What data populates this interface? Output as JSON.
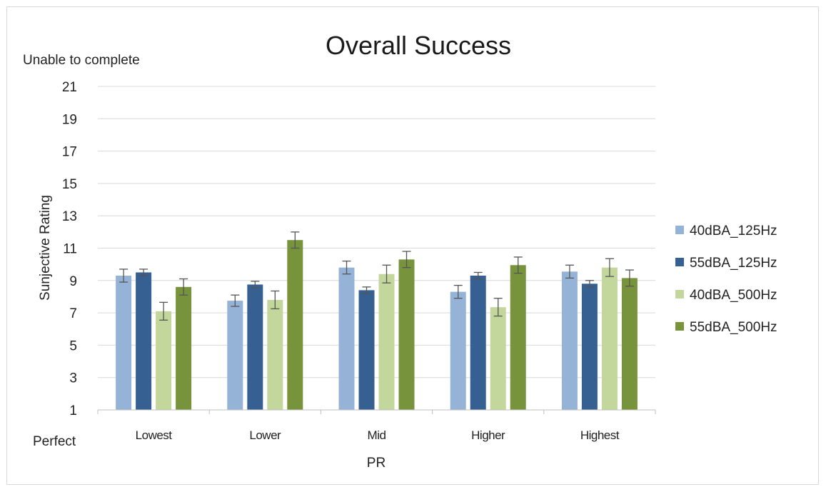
{
  "chart_data": {
    "type": "bar",
    "title": "Overall Success",
    "ylabel": "Sunjective Rating",
    "xlabel": "PR",
    "y_top_note": "Unable to complete",
    "y_bottom_note": "Perfect",
    "ylim": [
      1,
      21
    ],
    "yticks": [
      1,
      3,
      5,
      7,
      9,
      11,
      13,
      15,
      17,
      19,
      21
    ],
    "grid": true,
    "legend_position": "right",
    "categories": [
      "Lowest",
      "Lower",
      "Mid",
      "Higher",
      "Highest"
    ],
    "series": [
      {
        "name": "40dBA_125Hz",
        "color": "#95b3d7",
        "values": [
          9.3,
          7.75,
          9.8,
          8.3,
          9.55
        ],
        "error": [
          0.4,
          0.35,
          0.4,
          0.4,
          0.4
        ]
      },
      {
        "name": "55dBA_125Hz",
        "color": "#376092",
        "values": [
          9.5,
          8.75,
          8.4,
          9.3,
          8.8
        ],
        "error": [
          0.2,
          0.2,
          0.2,
          0.2,
          0.2
        ]
      },
      {
        "name": "40dBA_500Hz",
        "color": "#c3d69b",
        "values": [
          7.1,
          7.8,
          9.4,
          7.35,
          9.8
        ],
        "error": [
          0.55,
          0.55,
          0.55,
          0.55,
          0.55
        ]
      },
      {
        "name": "55dBA_500Hz",
        "color": "#77933c",
        "values": [
          8.6,
          11.5,
          10.3,
          9.95,
          9.15
        ],
        "error": [
          0.5,
          0.5,
          0.5,
          0.5,
          0.5
        ]
      }
    ]
  }
}
